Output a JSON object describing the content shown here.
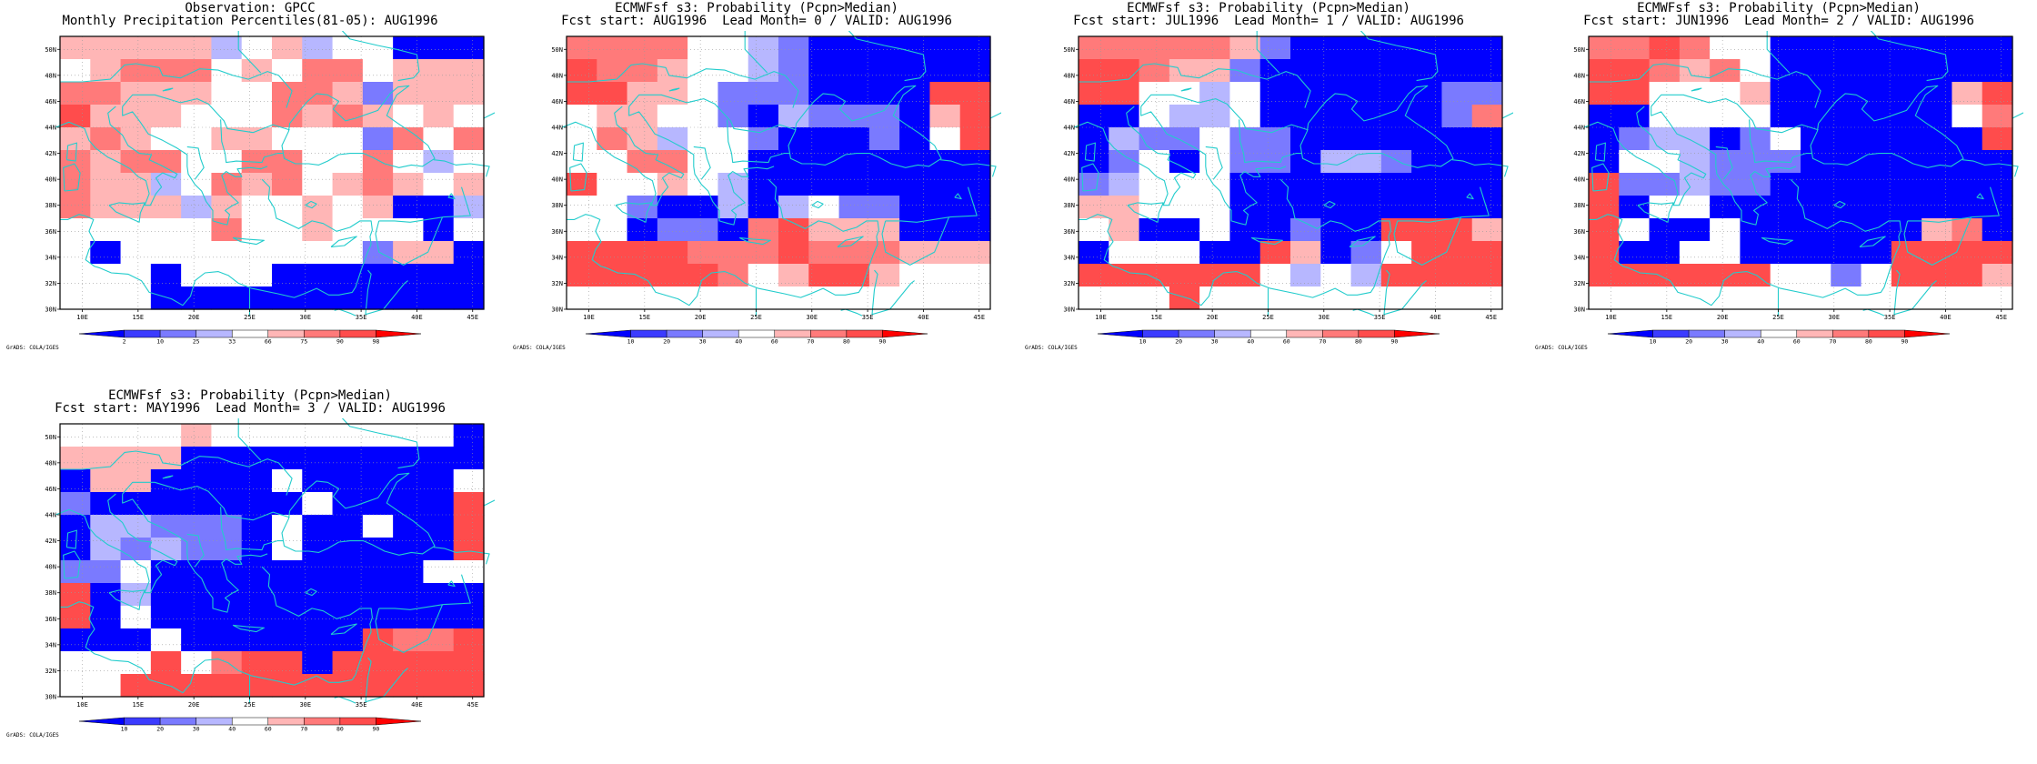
{
  "colors": {
    "blue": [
      "#0000ff",
      "#3b3bff",
      "#7a7aff",
      "#b7b7ff"
    ],
    "white": "#ffffff",
    "red": [
      "#ffb6b6",
      "#ff7a7a",
      "#ff4c4c",
      "#ff0000"
    ],
    "coast": "#22cccc",
    "grid": "#9a9a9a"
  },
  "map": {
    "lat_labels": [
      "50N",
      "48N",
      "46N",
      "44N",
      "42N",
      "40N",
      "38N",
      "36N",
      "34N",
      "32N",
      "30N"
    ],
    "lon_labels": [
      "10E",
      "15E",
      "20E",
      "25E",
      "30E",
      "35E",
      "40E",
      "45E"
    ],
    "credit": "GrADS: COLA/IGES"
  },
  "panels": [
    {
      "title1": "Observation: GPCC",
      "title2": "Monthly Precipitation Percentiles(81-05): AUG1996",
      "colorbar_labels": [
        "2",
        "10",
        "25",
        "33",
        "66",
        "75",
        "90",
        "98"
      ],
      "grid": [
        "55555345344001",
        "45666454664555",
        "66555446652555",
        "75554446565454",
        "56544554442646",
        "65664466446434",
        "65534656456545",
        "65553544545113",
        "44444644544414",
        "40444444442551",
        "44404440000000",
        "44411000000000"
      ]
    },
    {
      "title1": "ECMWFsf s3: Probability (Pcpn>Median)",
      "title2": "Fcst start: AUG1996  Lead Month= 0 / VALID: AUG1996",
      "colorbar_labels": [
        "10",
        "20",
        "30",
        "40",
        "60",
        "70",
        "80",
        "90"
      ],
      "grid": [
        "66664432111100",
        "76654432111111",
        "77554222111177",
        "45544213222157",
        "46534421112147",
        "44664400000000",
        "74454301100000",
        "44211313422110",
        "44122167555100",
        "77776667666555",
        "77777645775444",
        "44444444444444"
      ]
    },
    {
      "title1": "ECMWFsf s3: Probability (Pcpn>Median)",
      "title2": "Fcst start: JUL1996  Lead Month= 1 / VALID: AUG1996",
      "colorbar_labels": [
        "10",
        "20",
        "30",
        "40",
        "60",
        "70",
        "80",
        "90"
      ],
      "grid": [
        "66666521111100",
        "77655211111111",
        "77443411111122",
        "11433411111126",
        "13224221111111",
        "12414221332111",
        "23444111111111",
        "55444111111111",
        "45114112117775",
        "14441175124777",
        "77777743437777",
        "44474444444444"
      ]
    },
    {
      "title1": "ECMWFsf s3: Probability (Pcpn>Median)",
      "title2": "Fcst start: JUN1996  Lead Month= 2 / VALID: AUG1996",
      "colorbar_labels": [
        "10",
        "20",
        "30",
        "40",
        "60",
        "70",
        "80",
        "90"
      ],
      "grid": [
        "66764411111100",
        "77656411111111",
        "77444511111157",
        "11444401111146",
        "12331241111117",
        "14432221110111",
        "72232211111111",
        "71441111111111",
        "74114111111561",
        "71144111117777",
        "77777744247775",
        "44444444444444"
      ]
    },
    {
      "title1": "ECMWFsf s3: Probability (Pcpn>Median)",
      "title2": "Fcst start: MAY1996  Lead Month= 3 / VALID: AUG1996",
      "colorbar_labels": [
        "10",
        "20",
        "30",
        "40",
        "60",
        "70",
        "80",
        "90"
      ],
      "grid": [
        "44445444444441",
        "55551111111111",
        "15511114011114",
        "21111111411117",
        "13322214114117",
        "13232214111117",
        "22411100000044",
        "71311111111111",
        "71411111111111",
        "11141111117667",
        "44474677177777",
        "44777777777777"
      ]
    }
  ]
}
